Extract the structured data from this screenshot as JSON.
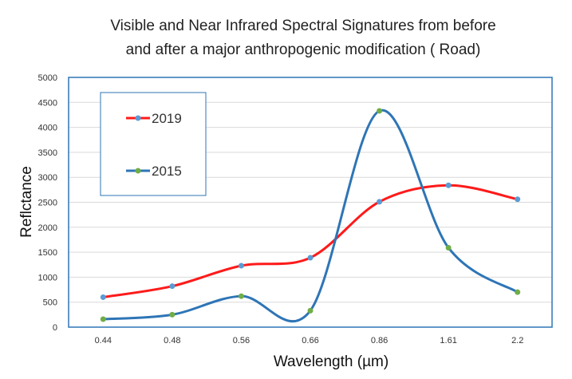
{
  "chart_data": {
    "type": "line",
    "title_lines": [
      "Visible and Near Infrared Spectral Signatures from  before",
      "and after a major anthropogenic modification ( Road)"
    ],
    "xlabel": "Wavelength (µm)",
    "ylabel": "Reflctance",
    "categories": [
      "0.44",
      "0.48",
      "0.56",
      "0.66",
      "0.86",
      "1.61",
      "2.2"
    ],
    "ylim": [
      0,
      5000
    ],
    "yticks": [
      0,
      500,
      1000,
      1500,
      2000,
      2500,
      3000,
      3500,
      4000,
      4500,
      5000
    ],
    "grid": true,
    "legend_position": "top-left inside plot",
    "series": [
      {
        "name": "2019",
        "color": "#ff1a1a",
        "marker_color": "#5b9bd5",
        "values": [
          600,
          820,
          1230,
          1390,
          2510,
          2840,
          2560
        ]
      },
      {
        "name": "2015",
        "color": "#2e75b6",
        "marker_color": "#70ad47",
        "values": [
          160,
          250,
          620,
          330,
          4330,
          1590,
          700
        ]
      }
    ]
  }
}
